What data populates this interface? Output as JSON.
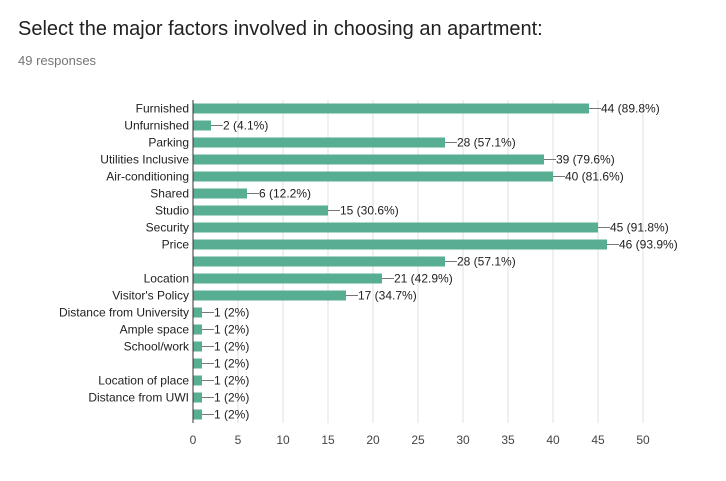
{
  "header": {
    "title": "Select the major factors involved in choosing an apartment:",
    "responses": "49 responses"
  },
  "colors": {
    "bar": "#57AE93",
    "grid": "#e0e0e0",
    "axis": "#333333",
    "label": "#222222",
    "tick": "#444444"
  },
  "chart_data": {
    "type": "bar",
    "orientation": "horizontal",
    "categories": [
      "Furnished",
      "Unfurnished",
      "Parking",
      "Utilities Inclusive",
      "Air-conditioning",
      "Shared",
      "Studio",
      "Security",
      "Price",
      "",
      "Location",
      "Visitor's Policy",
      "Distance from University",
      "Ample space",
      "School/work",
      "",
      "Location of place",
      "Distance from UWI",
      ""
    ],
    "values": [
      44,
      2,
      28,
      39,
      40,
      6,
      15,
      45,
      46,
      28,
      21,
      17,
      1,
      1,
      1,
      1,
      1,
      1,
      1
    ],
    "data_labels": [
      "44 (89.8%)",
      "2 (4.1%)",
      "28 (57.1%)",
      "39 (79.6%)",
      "40 (81.6%)",
      "6 (12.2%)",
      "15 (30.6%)",
      "45 (91.8%)",
      "46 (93.9%)",
      "28 (57.1%)",
      "21 (42.9%)",
      "17 (34.7%)",
      "1 (2%)",
      "1 (2%)",
      "1 (2%)",
      "1 (2%)",
      "1 (2%)",
      "1 (2%)",
      "1 (2%)"
    ],
    "xlim": [
      0,
      50
    ],
    "xticks": [
      0,
      5,
      10,
      15,
      20,
      25,
      30,
      35,
      40,
      45,
      50
    ],
    "grid": true,
    "title": "",
    "xlabel": "",
    "ylabel": ""
  }
}
